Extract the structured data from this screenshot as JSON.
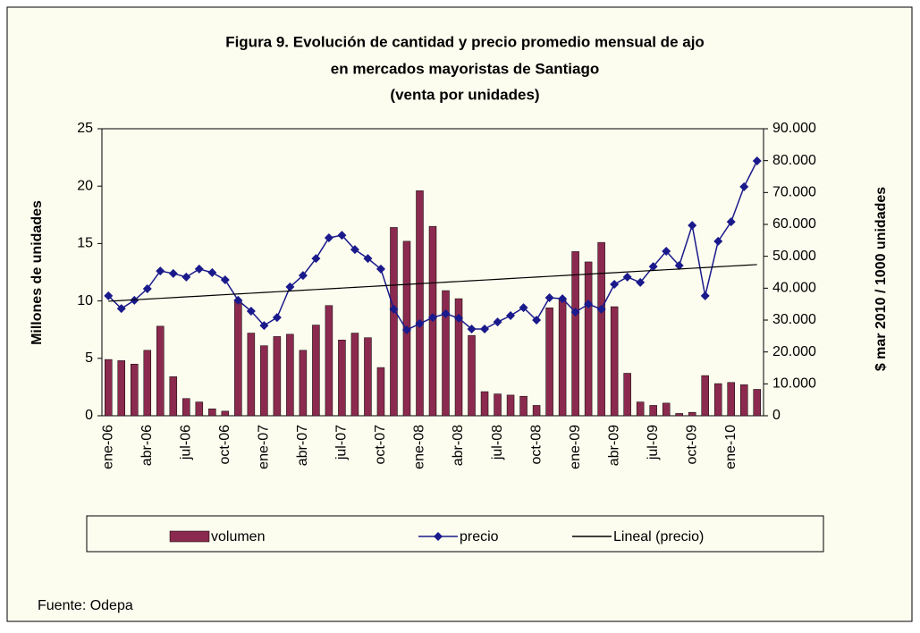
{
  "chart_data": {
    "type": "bar-line",
    "title": [
      "Figura 9. Evolución de cantidad  y precio promedio mensual de ajo",
      "en mercados mayoristas  de Santiago",
      "(venta por unidades)"
    ],
    "ylabel": "Millones de unidades",
    "y2label": "$ mar 2010 / 1000 unidades",
    "source": "Fuente: Odepa",
    "categories": [
      "ene-06",
      null,
      null,
      "abr-06",
      null,
      null,
      "jul-06",
      null,
      null,
      "oct-06",
      null,
      null,
      "ene-07",
      null,
      null,
      "abr-07",
      null,
      null,
      "jul-07",
      null,
      null,
      "oct-07",
      null,
      null,
      "ene-08",
      null,
      null,
      "abr-08",
      null,
      null,
      "jul-08",
      null,
      null,
      "oct-08",
      null,
      null,
      "ene-09",
      null,
      null,
      "abr-09",
      null,
      null,
      "jul-09",
      null,
      null,
      "oct-09",
      null,
      null,
      "ene-10",
      null,
      null
    ],
    "ylim": [
      0,
      25
    ],
    "yticks": [
      0,
      5,
      10,
      15,
      20,
      25
    ],
    "y2lim": [
      0,
      90000
    ],
    "y2ticks": [
      0,
      {
        "value": 10000,
        "label": "10.000"
      },
      {
        "value": 20000,
        "label": "20.000"
      },
      {
        "value": 30000,
        "label": "30.000"
      },
      {
        "value": 40000,
        "label": "40.000"
      },
      {
        "value": 50000,
        "label": "50.000"
      },
      {
        "value": 60000,
        "label": "60.000"
      },
      {
        "value": 70000,
        "label": "70.000"
      },
      {
        "value": 80000,
        "label": "80.000"
      },
      {
        "value": 90000,
        "label": "90.000"
      }
    ],
    "series": [
      {
        "name": "volumen",
        "kind": "bar",
        "color": "#8b2a4e",
        "values": [
          4.9,
          4.8,
          4.5,
          5.7,
          7.8,
          3.4,
          1.5,
          1.2,
          0.6,
          0.4,
          10.0,
          7.2,
          6.1,
          6.9,
          7.1,
          5.7,
          7.9,
          9.6,
          6.6,
          7.2,
          6.8,
          4.2,
          16.4,
          15.2,
          19.6,
          16.5,
          10.9,
          10.2,
          7.0,
          2.1,
          1.9,
          1.8,
          1.7,
          0.9,
          9.4,
          10.1,
          14.3,
          13.4,
          15.1,
          9.5,
          3.7,
          1.2,
          0.9,
          1.1,
          0.2,
          0.3,
          3.5,
          2.8,
          2.9,
          2.7,
          2.3
        ]
      },
      {
        "name": "precio",
        "kind": "line-marker",
        "axis": "y2",
        "color": "#1a1a8c",
        "values": [
          37600,
          33600,
          36200,
          39800,
          45400,
          44600,
          43500,
          46000,
          44900,
          42600,
          36200,
          32800,
          28300,
          30800,
          40400,
          44000,
          49300,
          55800,
          56600,
          52100,
          49300,
          46000,
          33400,
          26900,
          28900,
          30800,
          32000,
          30600,
          27200,
          27200,
          29400,
          31400,
          33900,
          30000,
          37000,
          36700,
          32500,
          35000,
          33400,
          41200,
          43500,
          41800,
          46800,
          51600,
          47100,
          59700,
          37600,
          54700,
          60800,
          71800,
          79900
        ]
      },
      {
        "name": "Lineal (precio)",
        "kind": "line",
        "axis": "y2",
        "color": "#000000",
        "values": [
          35900,
          36130,
          36360,
          36590,
          36820,
          37050,
          37280,
          37510,
          37740,
          37970,
          38200,
          38430,
          38660,
          38890,
          39120,
          39350,
          39580,
          39810,
          40040,
          40270,
          40500,
          40730,
          40960,
          41190,
          41420,
          41650,
          41880,
          42110,
          42340,
          42570,
          42800,
          43030,
          43260,
          43490,
          43720,
          43950,
          44180,
          44410,
          44640,
          44870,
          45100,
          45330,
          45560,
          45790,
          46020,
          46250,
          46480,
          46710,
          46940,
          47170,
          47400
        ]
      }
    ],
    "grid": false,
    "legend": "bottom"
  }
}
